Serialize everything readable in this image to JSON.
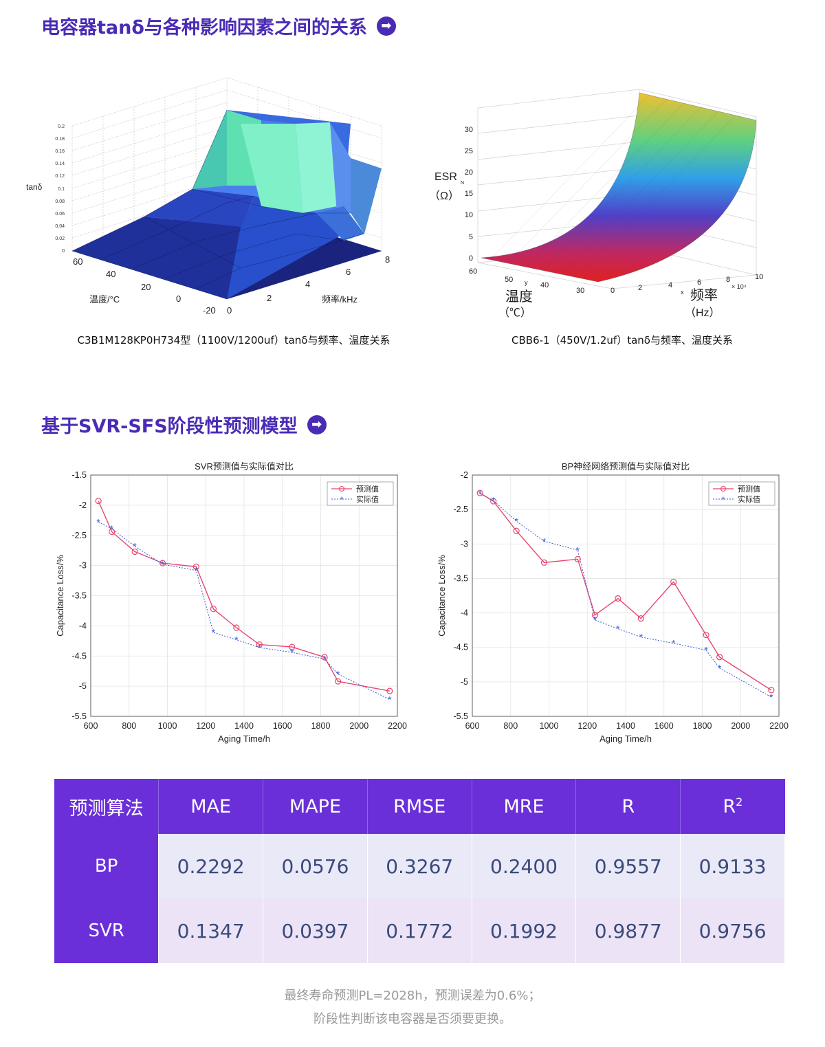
{
  "section1": {
    "title": "电容器tanδ与各种影响因素之间的关系",
    "arrow": "➡"
  },
  "section2": {
    "title": "基于SVR-SFS阶段性预测模型",
    "arrow": "➡"
  },
  "surface_left": {
    "caption": "C3B1M128KP0H734型（1100V/1200uf）tanδ与频率、温度关系",
    "zlabel": "tanδ",
    "zticks": [
      "0",
      "0.02",
      "0.04",
      "0.06",
      "0.08",
      "0.1",
      "0.12",
      "0.14",
      "0.16",
      "0.18",
      "0.2"
    ],
    "temp_label": "温度/°C",
    "temp_ticks": [
      "60",
      "40",
      "20",
      "0",
      "-20"
    ],
    "freq_label": "频率/kHz",
    "freq_ticks": [
      "0",
      "2",
      "4",
      "6",
      "8"
    ]
  },
  "surface_right": {
    "caption": "CBB6-1（450V/1.2uf）tanδ与频率、温度关系",
    "zlabel": "ESR",
    "zlabel_sub": "N",
    "zunit": "（Ω）",
    "zticks": [
      "0",
      "5",
      "10",
      "15",
      "20",
      "25",
      "30"
    ],
    "temp_label": "温度",
    "temp_unit": "（℃）",
    "temp_ticks": [
      "60",
      "50",
      "40",
      "30"
    ],
    "temp_axis_letter": "y",
    "freq_label": "频率",
    "freq_unit": "（Hz）",
    "freq_ticks": [
      "0",
      "2",
      "4",
      "6",
      "8",
      "10"
    ],
    "freq_axis_letter": "x",
    "freq_exp": "× 10⁴"
  },
  "chart_data": [
    {
      "type": "line",
      "title": "SVR预测值与实际值对比",
      "xlabel": "Aging Time/h",
      "ylabel": "Capacitance Loss/%",
      "xlim": [
        600,
        2200
      ],
      "ylim": [
        -5.5,
        -1.5
      ],
      "xticks": [
        600,
        800,
        1000,
        1200,
        1400,
        1600,
        1800,
        2000,
        2200
      ],
      "yticks": [
        -1.5,
        -2,
        -2.5,
        -3,
        -3.5,
        -4,
        -4.5,
        -5,
        -5.5
      ],
      "legend": [
        "预测值",
        "实际值"
      ],
      "series": [
        {
          "name": "预测值",
          "x": [
            640,
            710,
            830,
            975,
            1150,
            1240,
            1360,
            1480,
            1650,
            1820,
            1890,
            2160
          ],
          "y": [
            -1.93,
            -2.44,
            -2.77,
            -2.96,
            -3.02,
            -3.72,
            -4.03,
            -4.31,
            -4.35,
            -4.52,
            -4.92,
            -5.08
          ]
        },
        {
          "name": "实际值",
          "x": [
            640,
            710,
            830,
            975,
            1150,
            1240,
            1360,
            1480,
            1650,
            1820,
            1890,
            2160
          ],
          "y": [
            -2.28,
            -2.39,
            -2.68,
            -2.98,
            -3.08,
            -4.11,
            -4.23,
            -4.36,
            -4.44,
            -4.55,
            -4.8,
            -5.22
          ]
        }
      ]
    },
    {
      "type": "line",
      "title": "BP神经网络预测值与实际值对比",
      "xlabel": "Aging Time/h",
      "ylabel": "Capacitance Loss/%",
      "xlim": [
        600,
        2200
      ],
      "ylim": [
        -5.5,
        -2
      ],
      "xticks": [
        600,
        800,
        1000,
        1200,
        1400,
        1600,
        1800,
        2000,
        2200
      ],
      "yticks": [
        -2,
        -2.5,
        -3,
        -3.5,
        -4,
        -4.5,
        -5,
        -5.5
      ],
      "legend": [
        "预测值",
        "实际值"
      ],
      "series": [
        {
          "name": "预测值",
          "x": [
            640,
            710,
            830,
            975,
            1150,
            1240,
            1360,
            1480,
            1650,
            1820,
            1890,
            2160
          ],
          "y": [
            -2.26,
            -2.38,
            -2.81,
            -3.27,
            -3.22,
            -4.03,
            -3.79,
            -4.08,
            -3.55,
            -4.32,
            -4.64,
            -5.12
          ]
        },
        {
          "name": "实际值",
          "x": [
            640,
            710,
            830,
            975,
            1150,
            1240,
            1360,
            1480,
            1650,
            1820,
            1890,
            2160
          ],
          "y": [
            -2.27,
            -2.37,
            -2.67,
            -2.96,
            -3.09,
            -4.1,
            -4.23,
            -4.35,
            -4.44,
            -4.54,
            -4.8,
            -5.22
          ]
        }
      ]
    }
  ],
  "table": {
    "headers": [
      "预测算法",
      "MAE",
      "MAPE",
      "RMSE",
      "MRE",
      "R",
      "R",
      "2"
    ],
    "rows": [
      [
        "BP",
        "0.2292",
        "0.0576",
        "0.3267",
        "0.2400",
        "0.9557",
        "0.9133"
      ],
      [
        "SVR",
        "0.1347",
        "0.0397",
        "0.1772",
        "0.1992",
        "0.9877",
        "0.9756"
      ]
    ]
  },
  "footer": {
    "line1": "最终寿命预测PL=2028h，预测误差为0.6%；",
    "line2": "阶段性判断该电容器是否须要更换。"
  },
  "colors": {
    "accent": "#6a2fd8",
    "title": "#4a2bb5",
    "pred": "#e8466e",
    "actual": "#3a5ad8"
  }
}
